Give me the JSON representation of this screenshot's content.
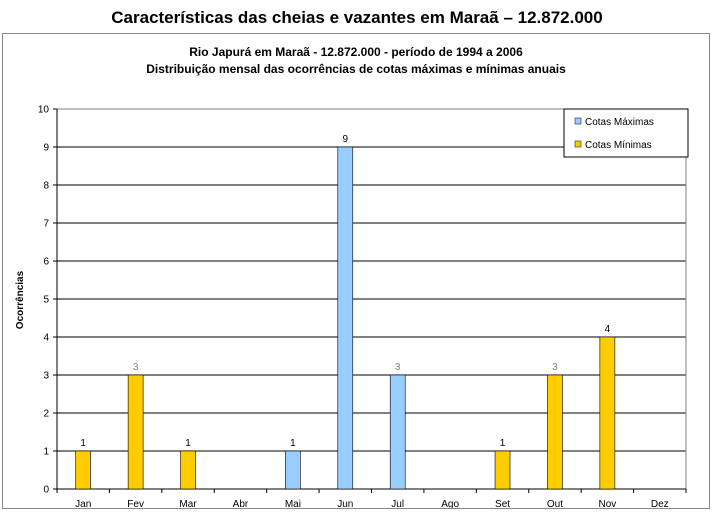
{
  "page_title": "Características das cheias e vazantes em Maraã – 12.872.000",
  "chart_data": {
    "type": "bar",
    "title": "Rio Japurá em Maraã  - 12.872.000 - período de 1994 a 2006",
    "subtitle": "Distribuição mensal das ocorrências de cotas máximas e mínimas anuais",
    "xlabel": "",
    "ylabel": "Ocorrências",
    "ylim": [
      0,
      10
    ],
    "yticks": [
      0,
      1,
      2,
      3,
      4,
      5,
      6,
      7,
      8,
      9,
      10
    ],
    "grid": true,
    "legend_position": "top-right",
    "categories": [
      "Jan",
      "Fev",
      "Mar",
      "Abr",
      "Mai",
      "Jun",
      "Jul",
      "Ago",
      "Set",
      "Out",
      "Nov",
      "Dez"
    ],
    "series": [
      {
        "name": "Cotas Máximas",
        "color": "#99ccff",
        "values": [
          0,
          0,
          0,
          0,
          1,
          9,
          3,
          0,
          0,
          0,
          0,
          0
        ]
      },
      {
        "name": "Cotas Mínimas",
        "color": "#ffcc00",
        "values": [
          1,
          3,
          1,
          0,
          0,
          0,
          0,
          0,
          1,
          3,
          4,
          0
        ]
      }
    ]
  }
}
